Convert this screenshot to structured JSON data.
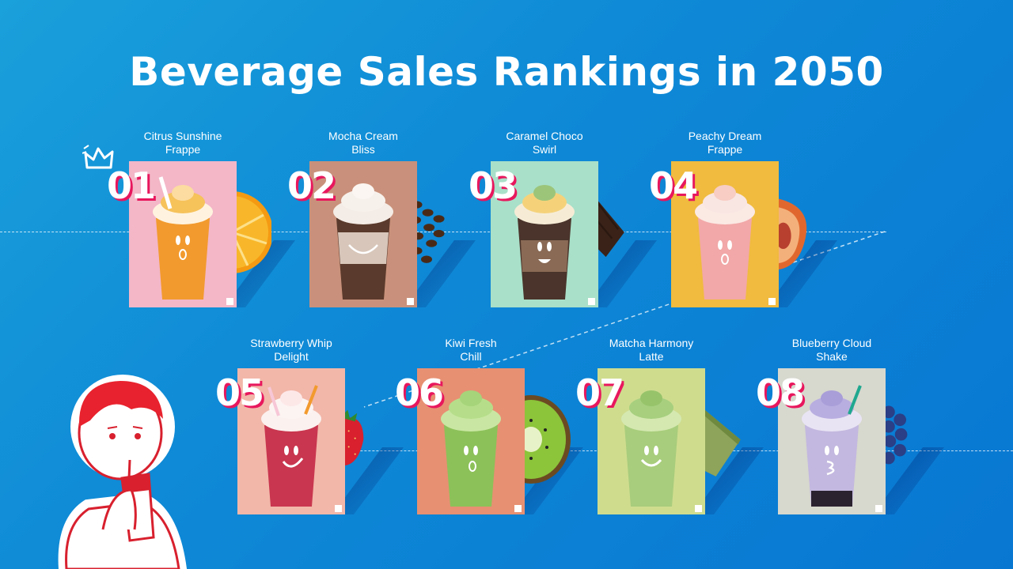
{
  "title": "Beverage Sales Rankings in 2050",
  "colors": {
    "background": "#0f8ad6",
    "rank_shadow": "#e8175d",
    "text": "#ffffff"
  },
  "items": [
    {
      "rank": "01",
      "name_line1": "Citrus Sunshine",
      "name_line2": "Frappe",
      "bg": "#f3b7c8",
      "drink": "#f29a2e",
      "cream": "#f6c25a",
      "fruit": "orange"
    },
    {
      "rank": "02",
      "name_line1": "Mocha Cream",
      "name_line2": "Bliss",
      "bg": "#c9917b",
      "drink": "#5a3a2c",
      "cream": "#f4ece6",
      "fruit": "coffee-beans"
    },
    {
      "rank": "03",
      "name_line1": "Caramel Choco",
      "name_line2": "Swirl",
      "bg": "#a9e0c9",
      "drink": "#4a342b",
      "cream": "#f5d27a",
      "fruit": "chocolate"
    },
    {
      "rank": "04",
      "name_line1": "Peachy Dream",
      "name_line2": "Frappe",
      "bg": "#f0bb3f",
      "drink": "#f2a8a8",
      "cream": "#f9e6e3",
      "fruit": "peach"
    },
    {
      "rank": "05",
      "name_line1": "Strawberry Whip",
      "name_line2": "Delight",
      "bg": "#f2b7a9",
      "drink": "#c9364f",
      "cream": "#fbf1ef",
      "fruit": "strawberry"
    },
    {
      "rank": "06",
      "name_line1": "Kiwi Fresh",
      "name_line2": "Chill",
      "bg": "#e79072",
      "drink": "#8cc159",
      "cream": "#b6de8a",
      "fruit": "kiwi"
    },
    {
      "rank": "07",
      "name_line1": "Matcha Harmony",
      "name_line2": "Latte",
      "bg": "#cfdc8e",
      "drink": "#a8cd7c",
      "cream": "#a7cf7e",
      "fruit": "matcha"
    },
    {
      "rank": "08",
      "name_line1": "Blueberry Cloud",
      "name_line2": "Shake",
      "bg": "#d7d8ce",
      "drink": "#c3b8df",
      "cream": "#b9aee0",
      "fruit": "blueberries"
    }
  ]
}
